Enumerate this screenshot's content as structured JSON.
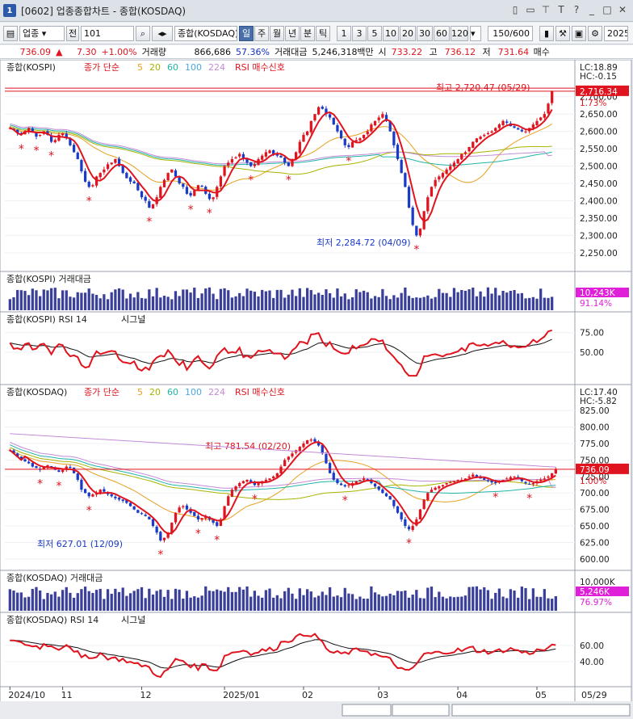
{
  "window": {
    "title": "[0602] 업종종합차트 - 종합(KOSDAQ)",
    "icon_label": "1"
  },
  "toolbar": {
    "market": "업종",
    "prev_label": "전",
    "code": "101",
    "index_name": "종합(KOSDAQ)",
    "periods": [
      "일",
      "주",
      "월",
      "년",
      "분",
      "틱"
    ],
    "selected_period": "일",
    "nums": [
      "1",
      "3",
      "5",
      "10",
      "20",
      "30",
      "60",
      "120"
    ],
    "count": "150/600",
    "date": "2025"
  },
  "quote": {
    "price": "736.09",
    "change": "7.30",
    "change_pct": "+1.00%",
    "vol_label": "거래량",
    "volume": "866,686",
    "vol_pct": "57.36%",
    "amount_label": "거래대금",
    "amount": "5,246,318백만",
    "open_label": "시",
    "open": "733.22",
    "high_label": "고",
    "high": "736.12",
    "low_label": "저",
    "low": "731.64",
    "more": "매수"
  },
  "panels": {
    "kospi_price": {
      "title": "종합(KOSPI)",
      "ma_label": "종가 단순",
      "ma": [
        "5",
        "20",
        "60",
        "100",
        "224"
      ],
      "ma_colors": [
        "#e8a020",
        "#a8b400",
        "#20b4a8",
        "#4aa8e0",
        "#c48ad8"
      ],
      "rsi_signal": "RSI 매수신호",
      "lc": "LC:18.89",
      "hc": "HC:-0.15",
      "last": "2,716.34",
      "pct": "1.73%",
      "high_note": "최고 2,720.47 (05/29)",
      "low_note": "최저 2,284.72 (04/09)",
      "yticks": [
        "2,700.00",
        "2,650.00",
        "2,600.00",
        "2,550.00",
        "2,500.00",
        "2,450.00",
        "2,400.00",
        "2,350.00",
        "2,300.00",
        "2,250.00"
      ],
      "ymin": 2210,
      "ymax": 2760
    },
    "kospi_amount": {
      "title": "종합(KOSPI) 거래대금",
      "last": "10,243K",
      "pct": "91.14%"
    },
    "kospi_rsi": {
      "title": "종합(KOSPI) RSI 14",
      "signal": "시그널",
      "yticks": [
        "75.00",
        "50.00"
      ]
    },
    "kosdaq_price": {
      "title": "종합(KOSDAQ)",
      "ma_label": "종가 단순",
      "ma": [
        "5",
        "20",
        "60",
        "100",
        "224"
      ],
      "rsi_signal": "RSI 매수신호",
      "lc": "LC:17.40",
      "hc": "HC:-5.82",
      "last": "736.09",
      "pct": "1.00%",
      "high_note": "최고 781.54 (02/20)",
      "low_note": "최저 627.01 (12/09)",
      "yticks": [
        "825.00",
        "800.00",
        "775.00",
        "750.00",
        "725.00",
        "700.00",
        "675.00",
        "650.00",
        "625.00",
        "600.00"
      ],
      "ymin": 590,
      "ymax": 840
    },
    "kosdaq_amount": {
      "title": "종합(KOSDAQ) 거래대금",
      "ytick": "10,000K",
      "last": "5,246K",
      "pct": "76.97%"
    },
    "kosdaq_rsi": {
      "title": "종합(KOSDAQ) RSI 14",
      "signal": "시그널",
      "yticks": [
        "60.00",
        "40.00"
      ]
    }
  },
  "xaxis": {
    "labels": [
      "2024/10",
      "11",
      "12",
      "2025/01",
      "02",
      "03",
      "04",
      "05"
    ],
    "right_label": "05/29"
  },
  "chart_data": [
    {
      "type": "candlestick",
      "title": "종합(KOSPI)",
      "close": [
        2610,
        2605,
        2595,
        2590,
        2598,
        2610,
        2600,
        2585,
        2590,
        2600,
        2590,
        2570,
        2575,
        2590,
        2595,
        2580,
        2560,
        2540,
        2520,
        2485,
        2455,
        2440,
        2445,
        2470,
        2480,
        2490,
        2505,
        2510,
        2520,
        2500,
        2480,
        2465,
        2455,
        2450,
        2430,
        2410,
        2400,
        2380,
        2390,
        2410,
        2440,
        2460,
        2480,
        2490,
        2470,
        2450,
        2440,
        2420,
        2415,
        2430,
        2445,
        2440,
        2420,
        2405,
        2410,
        2440,
        2470,
        2500,
        2510,
        2520,
        2525,
        2535,
        2520,
        2510,
        2500,
        2505,
        2520,
        2530,
        2540,
        2545,
        2535,
        2530,
        2525,
        2510,
        2500,
        2520,
        2540,
        2570,
        2590,
        2600,
        2630,
        2650,
        2670,
        2665,
        2650,
        2640,
        2620,
        2600,
        2580,
        2560,
        2555,
        2570,
        2575,
        2580,
        2590,
        2600,
        2620,
        2630,
        2640,
        2650,
        2630,
        2600,
        2560,
        2520,
        2480,
        2440,
        2380,
        2330,
        2300,
        2320,
        2370,
        2410,
        2440,
        2460,
        2470,
        2480,
        2490,
        2500,
        2510,
        2520,
        2535,
        2540,
        2555,
        2570,
        2580,
        2585,
        2590,
        2595,
        2600,
        2610,
        2620,
        2630,
        2625,
        2615,
        2610,
        2605,
        2600,
        2600,
        2610,
        2620,
        2630,
        2640,
        2650,
        2680,
        2716
      ]
    },
    {
      "type": "candlestick",
      "title": "종합(KOSDAQ)",
      "close": [
        765,
        760,
        755,
        750,
        748,
        745,
        740,
        738,
        735,
        740,
        742,
        738,
        735,
        732,
        735,
        740,
        738,
        730,
        720,
        705,
        700,
        695,
        698,
        700,
        705,
        702,
        698,
        695,
        692,
        690,
        688,
        685,
        680,
        675,
        670,
        668,
        665,
        660,
        650,
        640,
        628,
        632,
        640,
        655,
        670,
        678,
        680,
        675,
        670,
        665,
        660,
        662,
        665,
        660,
        655,
        650,
        660,
        680,
        695,
        705,
        710,
        715,
        718,
        720,
        716,
        712,
        715,
        718,
        720,
        722,
        725,
        730,
        740,
        750,
        755,
        760,
        765,
        770,
        775,
        780,
        781,
        778,
        772,
        760,
        745,
        730,
        720,
        715,
        712,
        710,
        712,
        715,
        718,
        720,
        722,
        720,
        715,
        710,
        705,
        700,
        695,
        690,
        680,
        670,
        660,
        650,
        645,
        650,
        660,
        675,
        690,
        700,
        705,
        708,
        710,
        712,
        715,
        716,
        718,
        720,
        720,
        722,
        725,
        728,
        724,
        722,
        720,
        718,
        716,
        715,
        718,
        720,
        722,
        724,
        725,
        722,
        718,
        715,
        713,
        715,
        718,
        720,
        722,
        725,
        730,
        736
      ]
    }
  ]
}
